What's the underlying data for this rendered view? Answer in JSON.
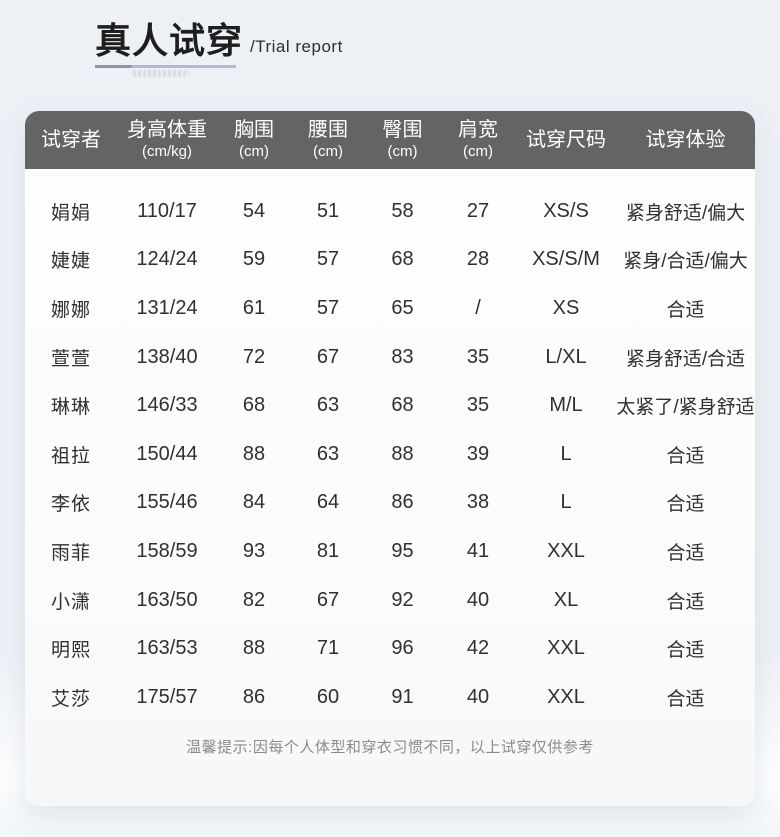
{
  "page": {
    "title": "真人试穿",
    "subtitle": "/Trial report",
    "footnote": "温馨提示:因每个人体型和穿衣习惯不同，以上试穿仅供参考"
  },
  "table": {
    "columns": [
      {
        "label": "试穿者",
        "sub": ""
      },
      {
        "label": "身高体重",
        "sub": "(cm/kg)"
      },
      {
        "label": "胸围",
        "sub": "(cm)"
      },
      {
        "label": "腰围",
        "sub": "(cm)"
      },
      {
        "label": "臀围",
        "sub": "(cm)"
      },
      {
        "label": "肩宽",
        "sub": "(cm)"
      },
      {
        "label": "试穿尺码",
        "sub": ""
      },
      {
        "label": "试穿体验",
        "sub": ""
      }
    ],
    "rows": [
      [
        "娟娟",
        "110/17",
        "54",
        "51",
        "58",
        "27",
        "XS/S",
        "紧身舒适/偏大"
      ],
      [
        "婕婕",
        "124/24",
        "59",
        "57",
        "68",
        "28",
        "XS/S/M",
        "紧身/合适/偏大"
      ],
      [
        "娜娜",
        "131/24",
        "61",
        "57",
        "65",
        "/",
        "XS",
        "合适"
      ],
      [
        "萱萱",
        "138/40",
        "72",
        "67",
        "83",
        "35",
        "L/XL",
        "紧身舒适/合适"
      ],
      [
        "琳琳",
        "146/33",
        "68",
        "63",
        "68",
        "35",
        "M/L",
        "太紧了/紧身舒适"
      ],
      [
        "祖拉",
        "150/44",
        "88",
        "63",
        "88",
        "39",
        "L",
        "合适"
      ],
      [
        "李依",
        "155/46",
        "84",
        "64",
        "86",
        "38",
        "L",
        "合适"
      ],
      [
        "雨菲",
        "158/59",
        "93",
        "81",
        "95",
        "41",
        "XXL",
        "合适"
      ],
      [
        "小潇",
        "163/50",
        "82",
        "67",
        "92",
        "40",
        "XL",
        "合适"
      ],
      [
        "明熙",
        "163/53",
        "88",
        "71",
        "96",
        "42",
        "XXL",
        "合适"
      ],
      [
        "艾莎",
        "175/57",
        "86",
        "60",
        "91",
        "40",
        "XXL",
        "合适"
      ]
    ]
  },
  "colors": {
    "header_bg": "#646464",
    "page_bg": "#edf1f6",
    "underline_dark": "#8a97a4",
    "underline_light": "#aebccb"
  }
}
